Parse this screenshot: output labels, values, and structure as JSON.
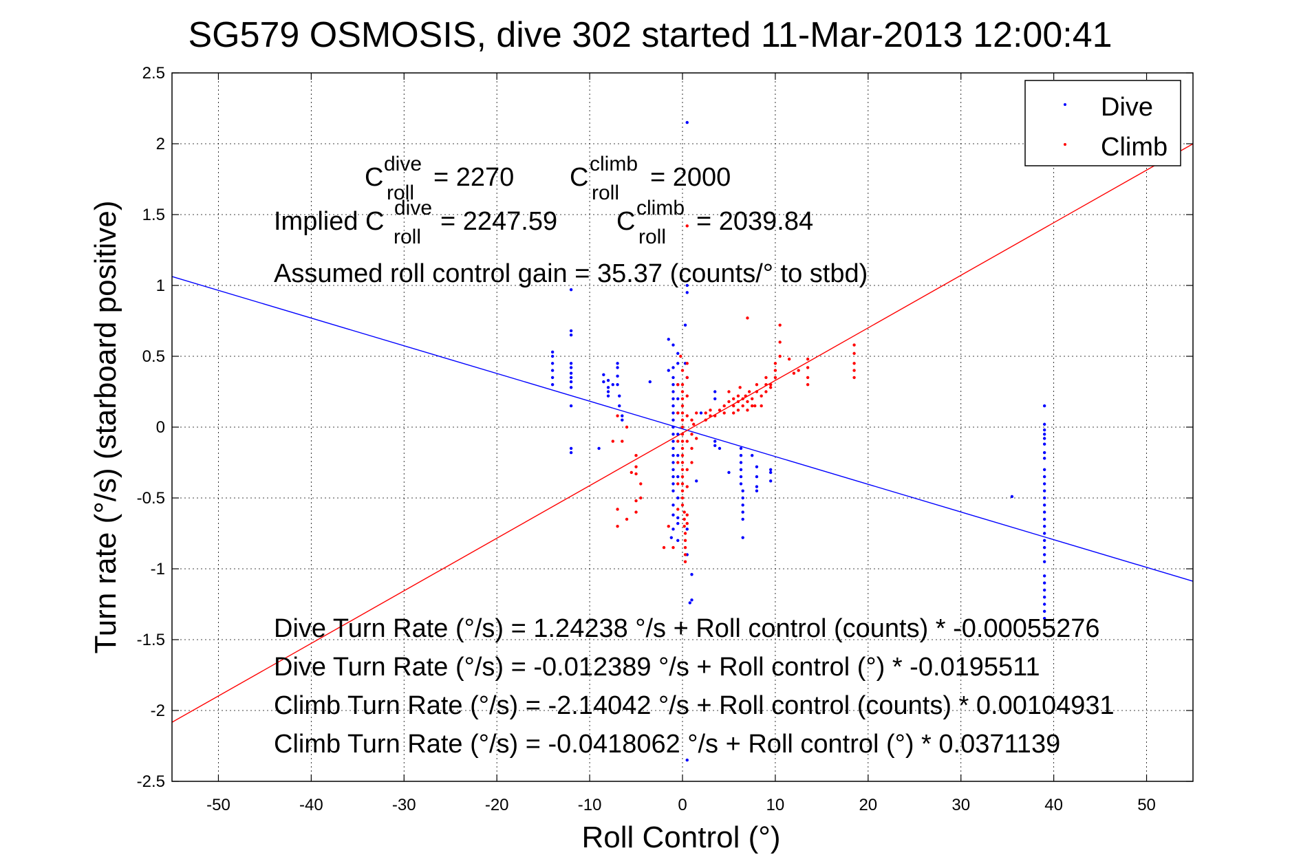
{
  "chart_data": {
    "type": "scatter",
    "title": "SG579 OSMOSIS, dive 302 started 11-Mar-2013 12:00:41",
    "xlabel": "Roll Control (°)",
    "ylabel": "Turn rate (°/s) (starboard positive)",
    "xlim": [
      -55,
      55
    ],
    "ylim": [
      -2.5,
      2.5
    ],
    "xticks": [
      -50,
      -40,
      -30,
      -20,
      -10,
      0,
      10,
      20,
      30,
      40,
      50
    ],
    "yticks": [
      2.5,
      2,
      1.5,
      1,
      0.5,
      0,
      -0.5,
      -1,
      -1.5,
      -2,
      -2.5
    ],
    "grid": true,
    "legend_position": "top-right",
    "series": [
      {
        "name": "Dive",
        "color": "#0000ff",
        "points": [
          [
            0.5,
            2.15
          ],
          [
            -12,
            0.97
          ],
          [
            -12,
            0.68
          ],
          [
            -12,
            0.65
          ],
          [
            -12,
            0.45
          ],
          [
            -12,
            0.42
          ],
          [
            -12,
            0.38
          ],
          [
            -12,
            0.35
          ],
          [
            -12,
            0.32
          ],
          [
            -12,
            0.28
          ],
          [
            -12,
            0.15
          ],
          [
            -12,
            -0.15
          ],
          [
            -12,
            -0.18
          ],
          [
            -14,
            0.53
          ],
          [
            -14,
            0.5
          ],
          [
            -14,
            0.45
          ],
          [
            -14,
            0.4
          ],
          [
            -14,
            0.35
          ],
          [
            -14,
            0.3
          ],
          [
            -8.5,
            0.37
          ],
          [
            -8.5,
            0.32
          ],
          [
            -8,
            0.28
          ],
          [
            -8,
            0.33
          ],
          [
            -8,
            0.25
          ],
          [
            -8,
            0.22
          ],
          [
            -7.5,
            0.3
          ],
          [
            -7,
            0.45
          ],
          [
            -7,
            0.42
          ],
          [
            -7,
            0.36
          ],
          [
            -7,
            0.3
          ],
          [
            -6.8,
            0.22
          ],
          [
            -6.8,
            0.15
          ],
          [
            -6.5,
            0.08
          ],
          [
            -6.5,
            0.05
          ],
          [
            -9,
            -0.15
          ],
          [
            -3.5,
            0.32
          ],
          [
            -1.5,
            0.62
          ],
          [
            -1.5,
            0.4
          ],
          [
            -1,
            0.58
          ],
          [
            -1,
            0.42
          ],
          [
            -1,
            0.35
          ],
          [
            -1,
            0.3
          ],
          [
            -1,
            0.25
          ],
          [
            -1,
            0.2
          ],
          [
            -1,
            0.15
          ],
          [
            -1,
            0.1
          ],
          [
            -1,
            0.05
          ],
          [
            -1,
            0.0
          ],
          [
            -1,
            -0.05
          ],
          [
            -1,
            -0.1
          ],
          [
            -1,
            -0.15
          ],
          [
            -1,
            -0.2
          ],
          [
            -1,
            -0.25
          ],
          [
            -1,
            -0.3
          ],
          [
            -1,
            -0.35
          ],
          [
            -1,
            -0.4
          ],
          [
            -1,
            -0.45
          ],
          [
            -1,
            -0.55
          ],
          [
            -1,
            -0.62
          ],
          [
            -1,
            -0.72
          ],
          [
            -0.5,
            0.52
          ],
          [
            -0.5,
            0.45
          ],
          [
            -0.5,
            0.3
          ],
          [
            -0.5,
            0.2
          ],
          [
            -0.5,
            0.1
          ],
          [
            -0.5,
            -0.05
          ],
          [
            -0.5,
            -0.2
          ],
          [
            -0.5,
            -0.35
          ],
          [
            -0.5,
            -0.5
          ],
          [
            -0.5,
            -0.64
          ],
          [
            -0.5,
            -0.68
          ],
          [
            -0.5,
            -0.8
          ],
          [
            -1.2,
            -0.78
          ],
          [
            0.5,
            1.0
          ],
          [
            0.5,
            0.95
          ],
          [
            0.3,
            0.72
          ],
          [
            0.3,
            0.45
          ],
          [
            0.5,
            0.35
          ],
          [
            0.5,
            -0.9
          ],
          [
            0.5,
            -0.72
          ],
          [
            1,
            -1.22
          ],
          [
            0.8,
            -1.24
          ],
          [
            1,
            -1.04
          ],
          [
            0.5,
            -2.35
          ],
          [
            1.5,
            -0.38
          ],
          [
            3.5,
            0.25
          ],
          [
            3.5,
            0.2
          ],
          [
            2,
            0.1
          ],
          [
            3.5,
            -0.1
          ],
          [
            3.5,
            -0.13
          ],
          [
            4,
            -0.15
          ],
          [
            5,
            -0.32
          ],
          [
            6.3,
            -0.15
          ],
          [
            6.3,
            -0.2
          ],
          [
            6.3,
            -0.25
          ],
          [
            6.3,
            -0.3
          ],
          [
            6.3,
            -0.35
          ],
          [
            6.3,
            -0.4
          ],
          [
            6.5,
            -0.45
          ],
          [
            6.5,
            -0.5
          ],
          [
            6.5,
            -0.55
          ],
          [
            6.5,
            -0.6
          ],
          [
            6.5,
            -0.65
          ],
          [
            6.5,
            -0.78
          ],
          [
            7.5,
            -0.2
          ],
          [
            8,
            -0.28
          ],
          [
            8,
            -0.35
          ],
          [
            8,
            -0.42
          ],
          [
            8,
            -0.45
          ],
          [
            9.5,
            -0.3
          ],
          [
            9.5,
            -0.32
          ],
          [
            9.5,
            -0.38
          ],
          [
            35.5,
            -0.49
          ],
          [
            39,
            0.15
          ],
          [
            39,
            0.02
          ],
          [
            39,
            -0.02
          ],
          [
            39,
            -0.05
          ],
          [
            39,
            -0.08
          ],
          [
            39,
            -0.12
          ],
          [
            39,
            -0.18
          ],
          [
            39,
            -0.22
          ],
          [
            39,
            -0.3
          ],
          [
            39,
            -0.35
          ],
          [
            39,
            -0.4
          ],
          [
            39,
            -0.45
          ],
          [
            39,
            -0.5
          ],
          [
            39,
            -0.55
          ],
          [
            39,
            -0.6
          ],
          [
            39,
            -0.65
          ],
          [
            39,
            -0.7
          ],
          [
            39,
            -0.75
          ],
          [
            39,
            -0.8
          ],
          [
            39,
            -0.85
          ],
          [
            39,
            -0.9
          ],
          [
            39,
            -0.95
          ],
          [
            39,
            -1.05
          ],
          [
            39,
            -1.1
          ],
          [
            39,
            -1.15
          ],
          [
            39,
            -1.2
          ],
          [
            39,
            -1.25
          ],
          [
            39,
            -1.3
          ],
          [
            39,
            -1.35
          ]
        ]
      },
      {
        "name": "Climb",
        "color": "#ff0000",
        "points": [
          [
            -7,
            -0.58
          ],
          [
            -7,
            -0.7
          ],
          [
            -6,
            -0.65
          ],
          [
            -5,
            -0.28
          ],
          [
            -5,
            -0.2
          ],
          [
            -5,
            -0.33
          ],
          [
            -5.5,
            -0.32
          ],
          [
            -5,
            -0.52
          ],
          [
            -5,
            -0.6
          ],
          [
            -7.5,
            -0.1
          ],
          [
            -7,
            0.08
          ],
          [
            -6.5,
            -0.1
          ],
          [
            -6,
            0.0
          ],
          [
            -4.5,
            -0.4
          ],
          [
            -4.5,
            -0.5
          ],
          [
            -2,
            -0.85
          ],
          [
            -1.5,
            -0.7
          ],
          [
            -1,
            -0.85
          ],
          [
            -0.5,
            -0.58
          ],
          [
            -0.2,
            0.5
          ],
          [
            0,
            0.4
          ],
          [
            0,
            0.3
          ],
          [
            0,
            0.25
          ],
          [
            0,
            0.2
          ],
          [
            0,
            0.15
          ],
          [
            0,
            0.1
          ],
          [
            0,
            0.05
          ],
          [
            0,
            0.0
          ],
          [
            0,
            -0.05
          ],
          [
            0,
            -0.1
          ],
          [
            0,
            -0.15
          ],
          [
            0,
            -0.2
          ],
          [
            0,
            -0.25
          ],
          [
            0,
            -0.3
          ],
          [
            0,
            -0.35
          ],
          [
            0,
            -0.4
          ],
          [
            0,
            -0.45
          ],
          [
            0,
            -0.5
          ],
          [
            0,
            -0.55
          ],
          [
            0.2,
            -0.6
          ],
          [
            0.2,
            -0.65
          ],
          [
            0.2,
            -0.7
          ],
          [
            0.3,
            -0.75
          ],
          [
            0.3,
            -0.8
          ],
          [
            0.3,
            -0.85
          ],
          [
            0.3,
            -0.9
          ],
          [
            0.3,
            -0.95
          ],
          [
            0.5,
            0.45
          ],
          [
            0.5,
            0.35
          ],
          [
            0.5,
            0.22
          ],
          [
            0.5,
            0.08
          ],
          [
            0.5,
            -0.1
          ],
          [
            0.5,
            -0.3
          ],
          [
            0.5,
            -0.42
          ],
          [
            0.5,
            -0.62
          ],
          [
            0.5,
            -0.68
          ],
          [
            0.5,
            1.42
          ],
          [
            -0.5,
            0.3
          ],
          [
            -0.5,
            0.1
          ],
          [
            -0.5,
            -0.1
          ],
          [
            -0.5,
            -0.25
          ],
          [
            -0.5,
            -0.4
          ],
          [
            1,
            0.05
          ],
          [
            1,
            -0.05
          ],
          [
            1,
            -0.15
          ],
          [
            1,
            -0.25
          ],
          [
            1.2,
            0.02
          ],
          [
            1.5,
            -0.08
          ],
          [
            1.5,
            0.1
          ],
          [
            2.5,
            0.05
          ],
          [
            2.5,
            0.1
          ],
          [
            3,
            0.08
          ],
          [
            3,
            0.12
          ],
          [
            3.5,
            0.08
          ],
          [
            4,
            0.12
          ],
          [
            4.5,
            0.1
          ],
          [
            4.5,
            0.15
          ],
          [
            5,
            0.18
          ],
          [
            5,
            0.25
          ],
          [
            5.5,
            0.2
          ],
          [
            5.5,
            0.15
          ],
          [
            5.5,
            0.1
          ],
          [
            6,
            0.22
          ],
          [
            6,
            0.18
          ],
          [
            6,
            0.12
          ],
          [
            6.2,
            0.28
          ],
          [
            6.5,
            0.2
          ],
          [
            6.5,
            0.15
          ],
          [
            6.8,
            0.22
          ],
          [
            7,
            0.18
          ],
          [
            7,
            0.12
          ],
          [
            7.2,
            0.25
          ],
          [
            7.5,
            0.2
          ],
          [
            7.5,
            0.15
          ],
          [
            7.8,
            0.15
          ],
          [
            7,
            0.77
          ],
          [
            8,
            0.3
          ],
          [
            8,
            0.25
          ],
          [
            8.5,
            0.22
          ],
          [
            8.5,
            0.15
          ],
          [
            9,
            0.35
          ],
          [
            9,
            0.3
          ],
          [
            9,
            0.25
          ],
          [
            9.5,
            0.3
          ],
          [
            9.5,
            0.28
          ],
          [
            10,
            0.45
          ],
          [
            10,
            0.4
          ],
          [
            10,
            0.35
          ],
          [
            10.5,
            0.72
          ],
          [
            10.5,
            0.6
          ],
          [
            10.5,
            0.5
          ],
          [
            11.5,
            0.48
          ],
          [
            12,
            0.38
          ],
          [
            12.5,
            0.4
          ],
          [
            13.5,
            0.48
          ],
          [
            13.5,
            0.42
          ],
          [
            13.5,
            0.35
          ],
          [
            13.5,
            0.3
          ],
          [
            18.5,
            0.58
          ],
          [
            18.5,
            0.52
          ],
          [
            18.5,
            0.45
          ],
          [
            18.5,
            0.4
          ],
          [
            18.5,
            0.35
          ]
        ]
      }
    ],
    "fit_lines": [
      {
        "name": "Dive fit",
        "color": "#0000ff",
        "intercept": -0.012389,
        "slope": -0.0195511
      },
      {
        "name": "Climb fit",
        "color": "#ff0000",
        "intercept": -0.0418062,
        "slope": 0.0371139
      }
    ],
    "annotations": {
      "c_roll_dive_label": "C",
      "c_roll_dive_sup": "dive",
      "c_roll_dive_sub": "roll",
      "c_roll_dive_value": "= 2270",
      "c_roll_climb_label": "C",
      "c_roll_climb_sup": "climb",
      "c_roll_climb_sub": "roll",
      "c_roll_climb_value": "= 2000",
      "implied_prefix": "Implied C",
      "implied_dive_sup": "dive",
      "implied_dive_sub": "roll",
      "implied_dive_value": "= 2247.59",
      "implied_climb_label": "C",
      "implied_climb_sup": "climb",
      "implied_climb_sub": "roll",
      "implied_climb_value": "= 2039.84",
      "gain": "Assumed roll control gain = 35.37 (counts/° to stbd)",
      "eq1": "Dive Turn Rate (°/s) = 1.24238 °/s + Roll control (counts) * -0.00055276",
      "eq2": "Dive Turn Rate (°/s) = -0.012389 °/s + Roll control (°) * -0.0195511",
      "eq3": "Climb Turn Rate (°/s) = -2.14042 °/s + Roll control (counts) * 0.00104931",
      "eq4": "Climb Turn Rate (°/s) = -0.0418062 °/s + Roll control (°) * 0.0371139"
    }
  }
}
